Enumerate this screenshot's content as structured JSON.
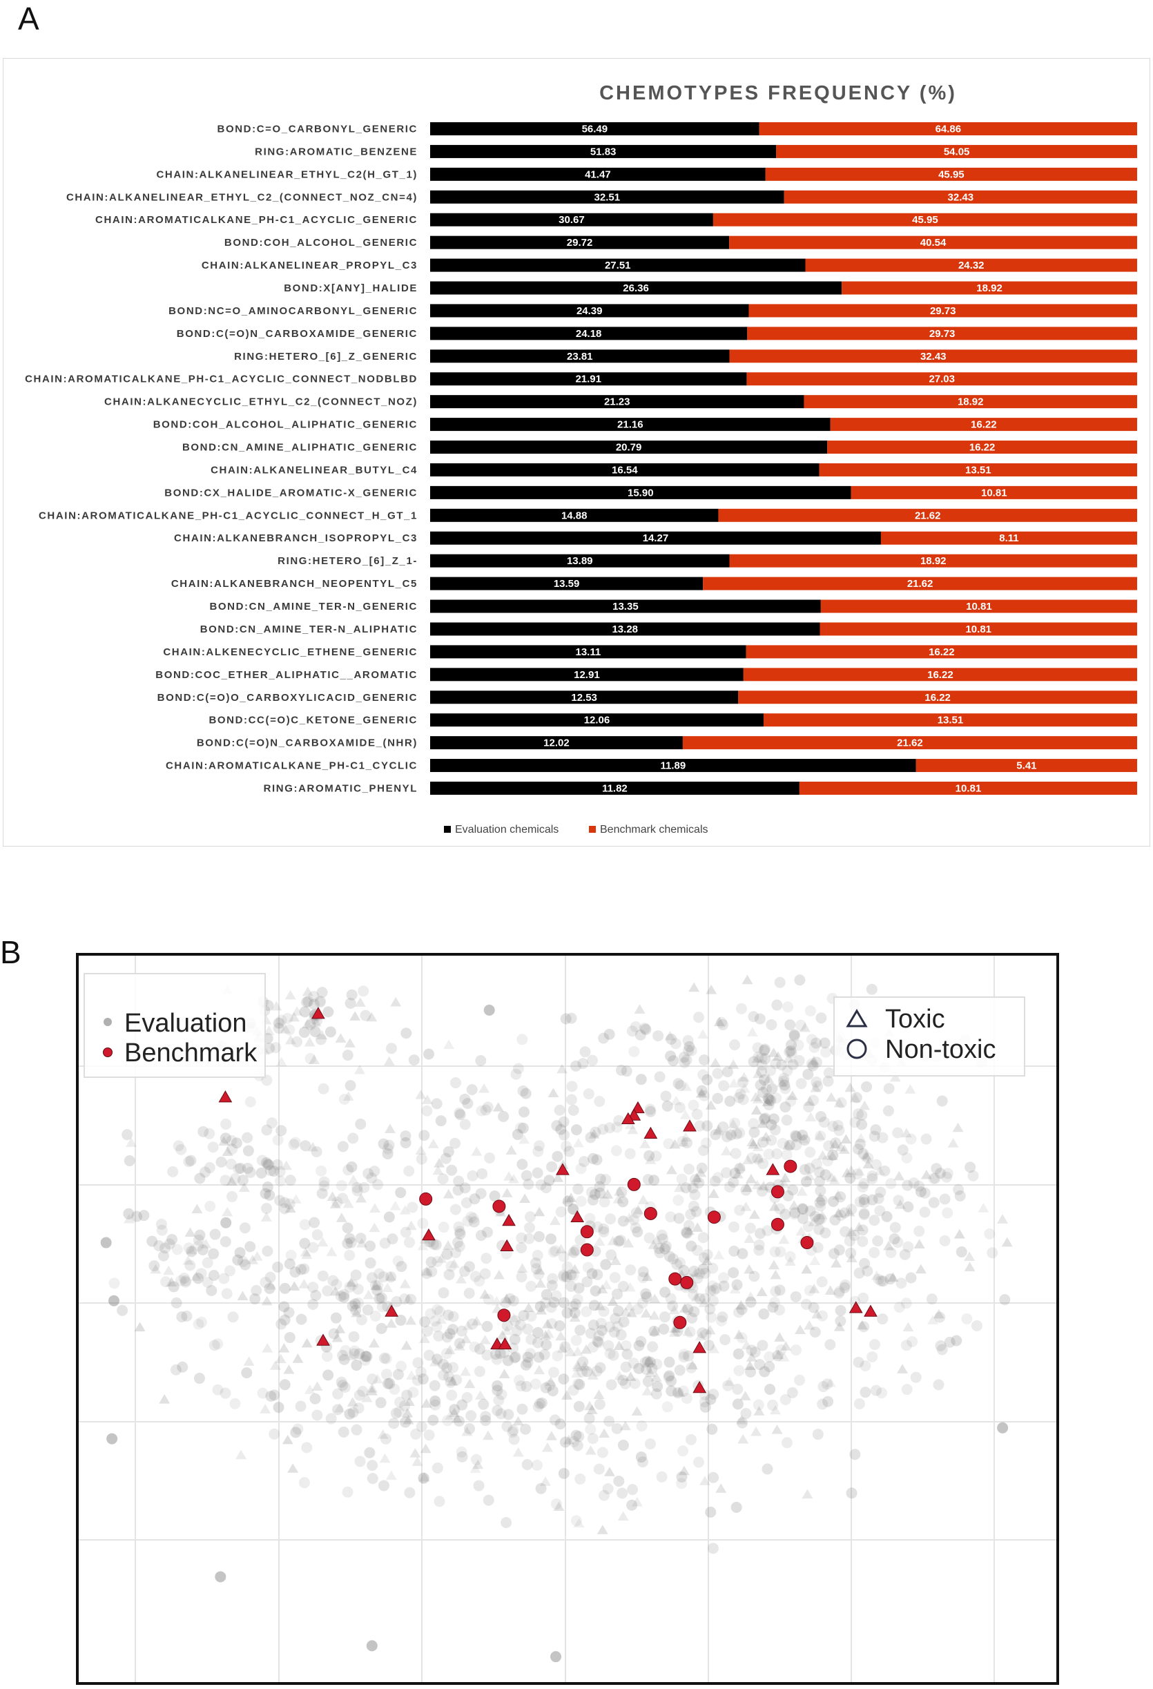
{
  "panels": {
    "a_letter": "A",
    "b_letter": "B"
  },
  "chart_data": [
    {
      "type": "bar",
      "orientation": "horizontal",
      "stacked": true,
      "title": "CHEMOTYPES FREQUENCY (%)",
      "categories": [
        "BOND:C=O_CARBONYL_GENERIC",
        "RING:AROMATIC_BENZENE",
        "CHAIN:ALKANELINEAR_ETHYL_C2(H_GT_1)",
        "CHAIN:ALKANELINEAR_ETHYL_C2_(CONNECT_NOZ_CN=4)",
        "CHAIN:AROMATICALKANE_PH-C1_ACYCLIC_GENERIC",
        "BOND:COH_ALCOHOL_GENERIC",
        "CHAIN:ALKANELINEAR_PROPYL_C3",
        "BOND:X[ANY]_HALIDE",
        "BOND:NC=O_AMINOCARBONYL_GENERIC",
        "BOND:C(=O)N_CARBOXAMIDE_GENERIC",
        "RING:HETERO_[6]_Z_GENERIC",
        "CHAIN:AROMATICALKANE_PH-C1_ACYCLIC_CONNECT_NODBLBD",
        "CHAIN:ALKANECYCLIC_ETHYL_C2_(CONNECT_NOZ)",
        "BOND:COH_ALCOHOL_ALIPHATIC_GENERIC",
        "BOND:CN_AMINE_ALIPHATIC_GENERIC",
        "CHAIN:ALKANELINEAR_BUTYL_C4",
        "BOND:CX_HALIDE_AROMATIC-X_GENERIC",
        "CHAIN:AROMATICALKANE_PH-C1_ACYCLIC_CONNECT_H_GT_1",
        "CHAIN:ALKANEBRANCH_ISOPROPYL_C3",
        "RING:HETERO_[6]_Z_1-",
        "CHAIN:ALKANEBRANCH_NEOPENTYL_C5",
        "BOND:CN_AMINE_TER-N_GENERIC",
        "BOND:CN_AMINE_TER-N_ALIPHATIC",
        "CHAIN:ALKENECYCLIC_ETHENE_GENERIC",
        "BOND:COC_ETHER_ALIPHATIC__AROMATIC",
        "BOND:C(=O)O_CARBOXYLICACID_GENERIC",
        "BOND:CC(=O)C_KETONE_GENERIC",
        "BOND:C(=O)N_CARBOXAMIDE_(NHR)",
        "CHAIN:AROMATICALKANE_PH-C1_CYCLIC",
        "RING:AROMATIC_PHENYL"
      ],
      "series": [
        {
          "name": "Evaluation chemicals",
          "color": "#000000",
          "values": [
            56.49,
            51.83,
            41.47,
            32.51,
            30.67,
            29.72,
            27.51,
            26.36,
            24.39,
            24.18,
            23.81,
            21.91,
            21.23,
            21.16,
            20.79,
            16.54,
            15.9,
            14.88,
            14.27,
            13.89,
            13.59,
            13.35,
            13.28,
            13.11,
            12.91,
            12.53,
            12.06,
            12.02,
            11.89,
            11.82
          ],
          "labels": [
            "56.49",
            "51.83",
            "41.47",
            "32.51",
            "30.67",
            "29.72",
            "27.51",
            "26.36",
            "24.39",
            "24.18",
            "23.81",
            "21.91",
            "21.23",
            "21.16",
            "20.79",
            "16.54",
            "15.90",
            "14.88",
            "14.27",
            "13.89",
            "13.59",
            "13.35",
            "13.28",
            "13.11",
            "12.91",
            "12.53",
            "12.06",
            "12.02",
            "11.89",
            "11.82"
          ]
        },
        {
          "name": "Benchmark chemicals",
          "color": "#d9360b",
          "values": [
            64.86,
            54.05,
            45.95,
            32.43,
            45.95,
            40.54,
            24.32,
            18.92,
            29.73,
            29.73,
            32.43,
            27.03,
            18.92,
            16.22,
            16.22,
            13.51,
            10.81,
            21.62,
            8.11,
            18.92,
            21.62,
            10.81,
            10.81,
            16.22,
            16.22,
            16.22,
            13.51,
            21.62,
            5.41,
            10.81
          ],
          "labels": [
            "64.86",
            "54.05",
            "45.95",
            "32.43",
            "45.95",
            "40.54",
            "24.32",
            "18.92",
            "29.73",
            "29.73",
            "32.43",
            "27.03",
            "18.92",
            "16.22",
            "16.22",
            "13.51",
            "10.81",
            "21.62",
            "8.11",
            "18.92",
            "21.62",
            "10.81",
            "10.81",
            "16.22",
            "16.22",
            "16.22",
            "13.51",
            "21.62",
            "5.41",
            "10.81"
          ]
        }
      ],
      "normalized_100_percent": true,
      "legend_position": "bottom-center"
    },
    {
      "type": "scatter",
      "legend_groups": {
        "color": [
          {
            "name": "Evaluation",
            "color": "#9a9a9a"
          },
          {
            "name": "Benchmark",
            "color": "#d0192b"
          }
        ],
        "shape": [
          {
            "name": "Toxic",
            "marker": "triangle"
          },
          {
            "name": "Non-toxic",
            "marker": "circle"
          }
        ]
      },
      "color_legend_position": "top-left",
      "shape_legend_position": "top-right",
      "grid": true,
      "axes_visible": false,
      "xlim": [
        0,
        100
      ],
      "ylim": [
        0,
        100
      ],
      "evaluation_note_count": 1800,
      "benchmark_points": [
        {
          "x": 24.5,
          "y": 92.0,
          "marker": "triangle"
        },
        {
          "x": 15.0,
          "y": 80.5,
          "marker": "triangle"
        },
        {
          "x": 57.2,
          "y": 79.0,
          "marker": "triangle"
        },
        {
          "x": 56.8,
          "y": 78.0,
          "marker": "triangle"
        },
        {
          "x": 56.2,
          "y": 77.5,
          "marker": "triangle"
        },
        {
          "x": 58.5,
          "y": 75.5,
          "marker": "triangle"
        },
        {
          "x": 62.5,
          "y": 76.5,
          "marker": "triangle"
        },
        {
          "x": 49.5,
          "y": 70.5,
          "marker": "triangle"
        },
        {
          "x": 71.0,
          "y": 70.5,
          "marker": "triangle"
        },
        {
          "x": 72.8,
          "y": 71.0,
          "marker": "circle"
        },
        {
          "x": 56.8,
          "y": 68.5,
          "marker": "circle"
        },
        {
          "x": 71.5,
          "y": 67.5,
          "marker": "circle"
        },
        {
          "x": 35.5,
          "y": 66.5,
          "marker": "circle"
        },
        {
          "x": 43.0,
          "y": 65.5,
          "marker": "circle"
        },
        {
          "x": 58.5,
          "y": 64.5,
          "marker": "circle"
        },
        {
          "x": 65.0,
          "y": 64.0,
          "marker": "circle"
        },
        {
          "x": 44.0,
          "y": 63.5,
          "marker": "triangle"
        },
        {
          "x": 51.0,
          "y": 64.0,
          "marker": "triangle"
        },
        {
          "x": 52.0,
          "y": 62.0,
          "marker": "circle"
        },
        {
          "x": 71.5,
          "y": 63.0,
          "marker": "circle"
        },
        {
          "x": 35.8,
          "y": 61.5,
          "marker": "triangle"
        },
        {
          "x": 43.8,
          "y": 60.0,
          "marker": "triangle"
        },
        {
          "x": 52.0,
          "y": 59.5,
          "marker": "circle"
        },
        {
          "x": 74.5,
          "y": 60.5,
          "marker": "circle"
        },
        {
          "x": 61.0,
          "y": 55.5,
          "marker": "circle"
        },
        {
          "x": 62.2,
          "y": 55.0,
          "marker": "circle"
        },
        {
          "x": 79.5,
          "y": 51.5,
          "marker": "triangle"
        },
        {
          "x": 81.0,
          "y": 51.0,
          "marker": "triangle"
        },
        {
          "x": 32.0,
          "y": 51.0,
          "marker": "triangle"
        },
        {
          "x": 43.5,
          "y": 50.5,
          "marker": "circle"
        },
        {
          "x": 61.5,
          "y": 49.5,
          "marker": "circle"
        },
        {
          "x": 25.0,
          "y": 47.0,
          "marker": "triangle"
        },
        {
          "x": 42.8,
          "y": 46.5,
          "marker": "triangle"
        },
        {
          "x": 43.6,
          "y": 46.5,
          "marker": "triangle"
        },
        {
          "x": 63.5,
          "y": 46.0,
          "marker": "triangle"
        },
        {
          "x": 63.5,
          "y": 40.5,
          "marker": "triangle"
        }
      ]
    }
  ]
}
